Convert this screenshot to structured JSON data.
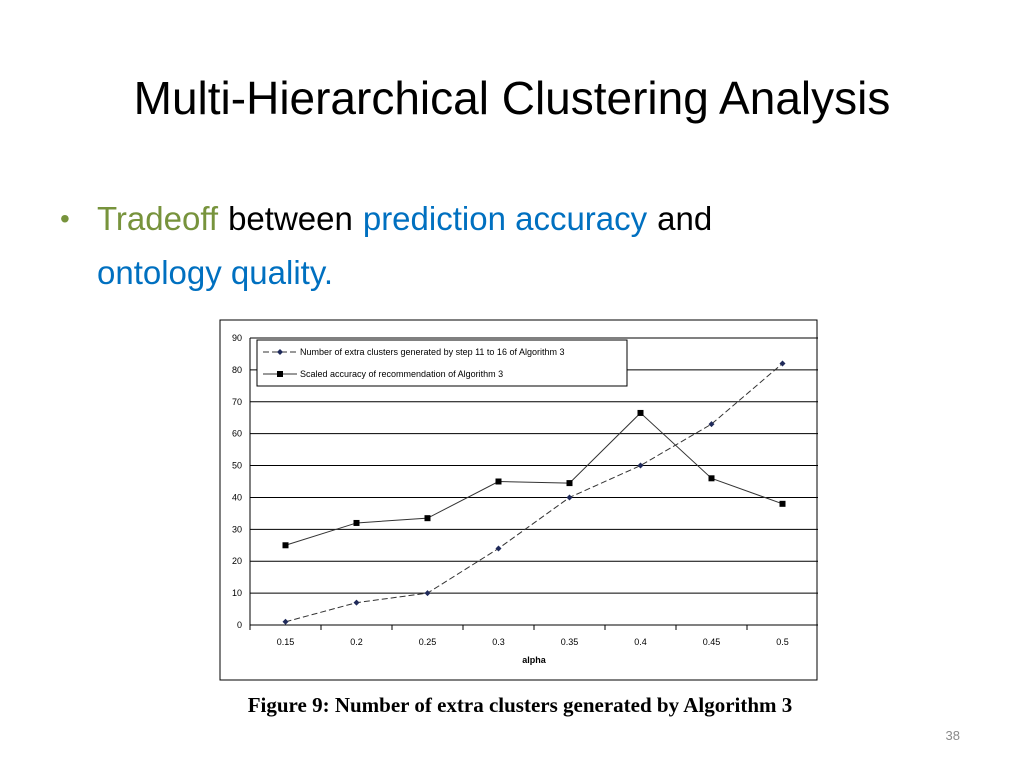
{
  "slide": {
    "title": "Multi-Hierarchical Clustering Analysis",
    "bullet": [
      {
        "text": "Tradeoff",
        "color": "#77933c"
      },
      {
        "text": "between",
        "color": "#000000"
      },
      {
        "text": "prediction accuracy",
        "color": "#0070c0"
      },
      {
        "text": "and",
        "color": "#000000"
      },
      {
        "text": "ontology quality.",
        "color": "#0070c0"
      }
    ],
    "caption": "Figure 9: Number of extra clusters generated by Algorithm 3",
    "page_number": "38"
  },
  "chart_data": {
    "type": "line",
    "x_label": "alpha",
    "categories": [
      "0.15",
      "0.2",
      "0.25",
      "0.3",
      "0.35",
      "0.4",
      "0.45",
      "0.5"
    ],
    "series": [
      {
        "name": "Number of extra clusters generated by step 11 to 16 of Algorithm 3",
        "color": "#333333",
        "dashed": true,
        "marker": "diamond",
        "values": [
          1,
          7,
          10,
          24,
          40,
          50,
          63,
          82
        ]
      },
      {
        "name": "Scaled accuracy of recommendation of Algorithm 3",
        "color": "#333333",
        "dashed": false,
        "marker": "square",
        "values": [
          25,
          32,
          33.5,
          45,
          44.5,
          66.5,
          46,
          38
        ]
      }
    ],
    "ylim": [
      0,
      90
    ],
    "yticks": [
      0,
      10,
      20,
      30,
      40,
      50,
      60,
      70,
      80,
      90
    ],
    "grid": true,
    "legend": "top-left"
  }
}
